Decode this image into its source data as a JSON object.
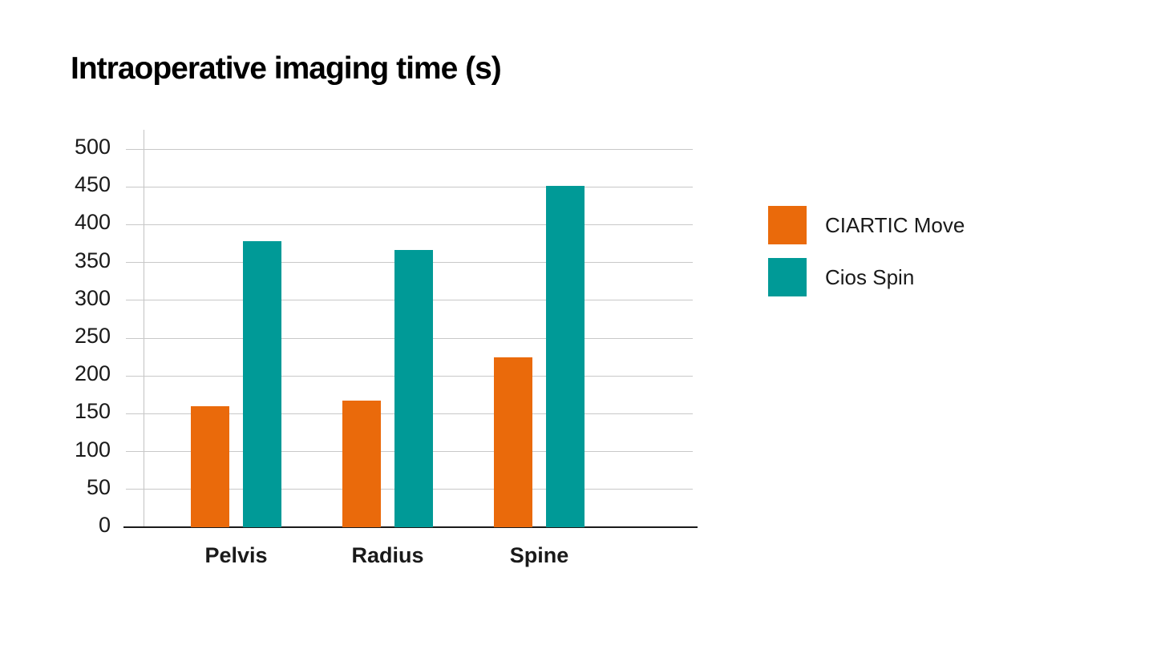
{
  "title": "Intraoperative imaging time (s)",
  "chart_data": {
    "type": "bar",
    "title": "Intraoperative imaging time (s)",
    "categories": [
      "Pelvis",
      "Radius",
      "Spine"
    ],
    "series": [
      {
        "name": "CIARTIC Move",
        "color": "#EA6A0B",
        "values": [
          160,
          167,
          225
        ]
      },
      {
        "name": "Cios Spin",
        "color": "#009A97",
        "values": [
          378,
          366,
          451
        ]
      }
    ],
    "ylim": [
      0,
      500
    ],
    "yticks": [
      0,
      50,
      100,
      150,
      200,
      250,
      300,
      350,
      400,
      450,
      500
    ],
    "xlabel": "",
    "ylabel": "",
    "grid": "horizontal-gridlines-on",
    "legend_position": "right"
  },
  "colors": {
    "background": "#FFFFFF",
    "text": "#1A1A1A",
    "gridline": "#C8C8C8",
    "axis_line": "#1A1A1A",
    "series_ciartic_move": "#EA6A0B",
    "series_cios_spin": "#009A97"
  }
}
